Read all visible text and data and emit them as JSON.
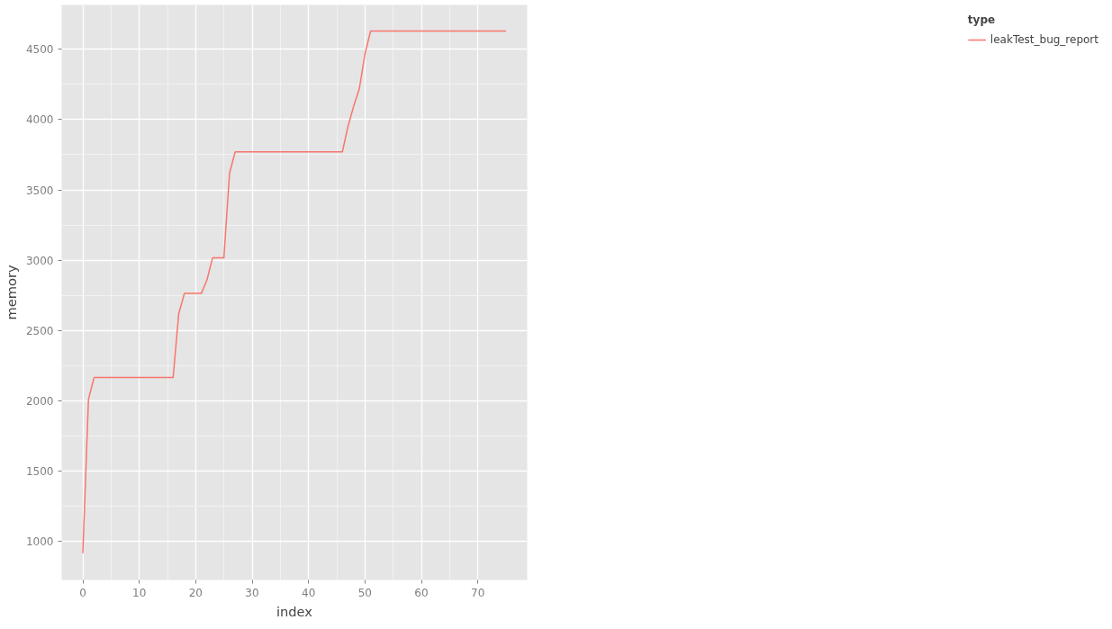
{
  "chart_data": {
    "type": "line",
    "xlabel": "index",
    "ylabel": "memory",
    "legend_title": "type",
    "xlim": [
      -3.75,
      78.75
    ],
    "xticks": [
      0,
      10,
      20,
      30,
      40,
      50,
      60,
      70
    ],
    "ylim": [
      724,
      4816
    ],
    "yticks": [
      1000,
      1500,
      2000,
      2500,
      3000,
      3500,
      4000,
      4500
    ],
    "grid": true,
    "legend": "right",
    "line_style": "solid",
    "series": [
      {
        "name": "leakTest_bug_report",
        "color": "#f8766d",
        "x": [
          0,
          1,
          2,
          16,
          17,
          18,
          21,
          22,
          23,
          25,
          26,
          27,
          46,
          47,
          48,
          49,
          50,
          51,
          75
        ],
        "values": [
          915,
          2010,
          2165,
          2165,
          2620,
          2763,
          2763,
          2860,
          3017,
          3017,
          3620,
          3771,
          3771,
          3953,
          4096,
          4220,
          4467,
          4630,
          4630
        ]
      }
    ]
  }
}
